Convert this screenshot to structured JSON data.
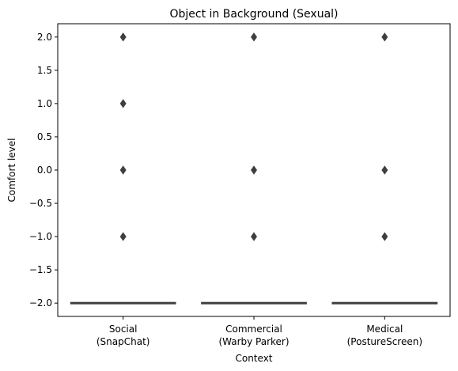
{
  "chart_data": {
    "type": "box",
    "title": "Object in Background (Sexual)",
    "xlabel": "Context",
    "ylabel": "Comfort level",
    "ylim": [
      -2.2,
      2.2
    ],
    "yticks": [
      2.0,
      1.5,
      1.0,
      0.5,
      0.0,
      -0.5,
      -1.0,
      -1.5,
      -2.0
    ],
    "ytick_labels": [
      "2.0",
      "1.5",
      "1.0",
      "0.5",
      "0.0",
      "−0.5",
      "−1.0",
      "−1.5",
      "−2.0"
    ],
    "categories": [
      {
        "line1": "Social",
        "line2": "(SnapChat)"
      },
      {
        "line1": "Commercial",
        "line2": "(Warby Parker)"
      },
      {
        "line1": "Medical",
        "line2": "(PostureScreen)"
      }
    ],
    "boxes": [
      {
        "q1": -2,
        "median": -2,
        "q3": -2,
        "whisker_low": -2,
        "whisker_high": -2,
        "outliers": [
          2,
          1,
          0,
          -1
        ]
      },
      {
        "q1": -2,
        "median": -2,
        "q3": -2,
        "whisker_low": -2,
        "whisker_high": -2,
        "outliers": [
          2,
          0,
          -1
        ]
      },
      {
        "q1": -2,
        "median": -2,
        "q3": -2,
        "whisker_low": -2,
        "whisker_high": -2,
        "outliers": [
          2,
          0,
          -1
        ]
      }
    ],
    "grid": false,
    "box_color": "#3f3f3f"
  }
}
